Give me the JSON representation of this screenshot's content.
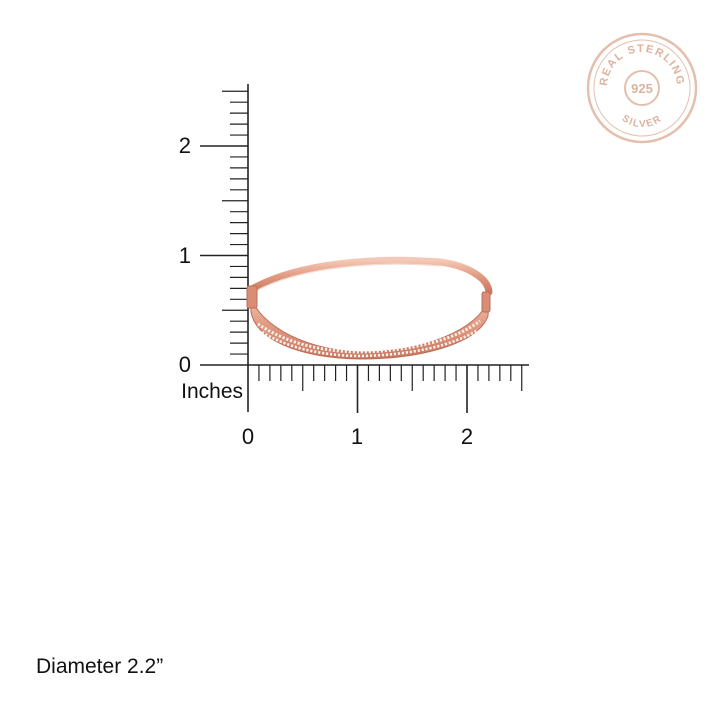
{
  "ruler": {
    "unit_label": "Inches",
    "y_tick_labels": [
      "0",
      "1",
      "2"
    ],
    "x_tick_labels": [
      "0",
      "1",
      "2"
    ]
  },
  "seal": {
    "top_text": "REAL STERLING",
    "center_text": "925",
    "bottom_text": "SILVER",
    "color": "#e0b9a6"
  },
  "product": {
    "name_icon": "rose-gold-bangle-image",
    "metal_color": "#e7a58e"
  },
  "caption": "Diameter 2.2”"
}
